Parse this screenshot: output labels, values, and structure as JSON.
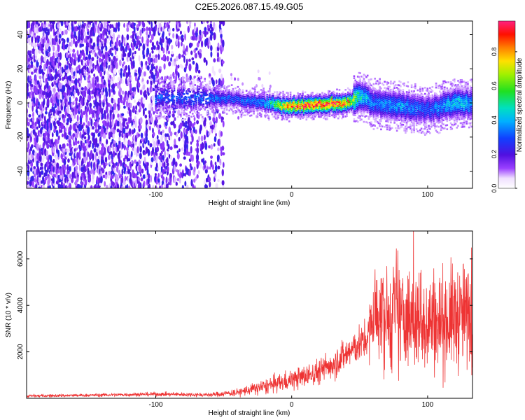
{
  "figure_title": "C2E5.2026.087.15.49.G05",
  "chart_data": [
    {
      "type": "heatmap",
      "title": "C2E5.2026.087.15.49.G05",
      "xlabel": "Height of straight line (km)",
      "ylabel": "Frequency (Hz)",
      "xlim": [
        -195,
        133
      ],
      "ylim": [
        -50,
        48
      ],
      "xticks": [
        -100,
        0,
        100
      ],
      "yticks": [
        -40,
        -20,
        0,
        20,
        40
      ],
      "colorbar": {
        "label": "Normalized spectral amplitude",
        "range": [
          0,
          0.98
        ],
        "ticks": [
          0.0,
          0.2,
          0.4,
          0.6,
          0.8
        ],
        "colormap": "rainbow (purple-blue-cyan-green-yellow-red-magenta)"
      },
      "ridge": {
        "description": "narrow high-amplitude band near 0 Hz for heights above about -60 km",
        "x": [
          -60,
          -40,
          -20,
          0,
          20,
          40,
          50,
          60,
          80,
          100,
          120,
          133
        ],
        "center_hz": [
          3,
          2,
          0,
          -2,
          -1,
          0,
          4,
          0,
          -2,
          -4,
          0,
          0
        ],
        "peak_amplitude": [
          0.35,
          0.3,
          0.4,
          0.9,
          0.95,
          0.9,
          0.5,
          0.35,
          0.4,
          0.3,
          0.45,
          0.4
        ]
      },
      "noise": {
        "description": "scattered low-amplitude speckle across all frequencies",
        "x_range": [
          -195,
          -50
        ],
        "amplitude_range": [
          0.05,
          0.25
        ]
      }
    },
    {
      "type": "line",
      "xlabel": "Height of straight line (km)",
      "ylabel": "SNR (10 * v/v)",
      "xlim": [
        -195,
        133
      ],
      "ylim": [
        0,
        7200
      ],
      "xticks": [
        -100,
        0,
        100
      ],
      "yticks": [
        2000,
        4000,
        6000
      ],
      "series": [
        {
          "name": "SNR",
          "color": "#ee3333",
          "x": [
            -195,
            -150,
            -100,
            -60,
            -40,
            -20,
            -10,
            0,
            10,
            20,
            30,
            40,
            50,
            56,
            60,
            70,
            80,
            90,
            100,
            110,
            120,
            133
          ],
          "values": [
            100,
            130,
            180,
            150,
            250,
            500,
            650,
            800,
            950,
            1150,
            1500,
            1900,
            2300,
            2600,
            3600,
            3400,
            3500,
            3300,
            3400,
            3300,
            3500,
            3600
          ],
          "spread": [
            60,
            60,
            80,
            80,
            150,
            300,
            350,
            400,
            450,
            500,
            600,
            700,
            700,
            800,
            2000,
            2000,
            2000,
            2000,
            2100,
            2000,
            2100,
            2000
          ]
        }
      ]
    }
  ]
}
